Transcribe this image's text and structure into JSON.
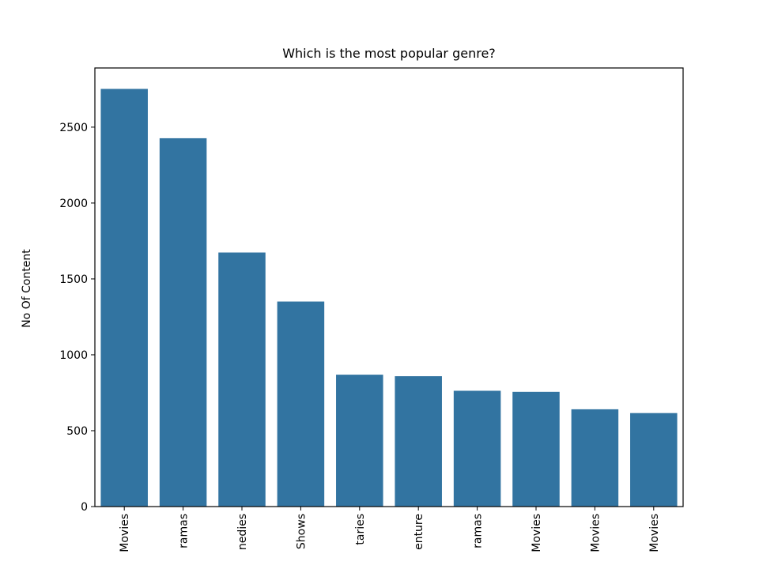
{
  "chart_data": {
    "type": "bar",
    "title": "Which is the most popular genre?",
    "xlabel": "",
    "ylabel": "No Of Content",
    "categories": [
      "International Movies",
      "Dramas",
      "Comedies",
      "International TV Shows",
      "Documentaries",
      "Action & Adventure",
      "TV Dramas",
      "Independent Movies",
      "Children & Family Movies",
      "Romantic Movies"
    ],
    "category_labels_visible": [
      "Movies",
      "ramas",
      "nedies",
      "Shows",
      "taries",
      "enture",
      "ramas",
      "Movies",
      "Movies",
      "Movies"
    ],
    "values": [
      2752,
      2427,
      1674,
      1351,
      869,
      859,
      763,
      756,
      641,
      616
    ],
    "ylim": [
      0,
      2890
    ],
    "yticks": [
      0,
      500,
      1000,
      1500,
      2000,
      2500
    ],
    "bar_color": "#3274a1",
    "grid": false,
    "legend": "none"
  }
}
